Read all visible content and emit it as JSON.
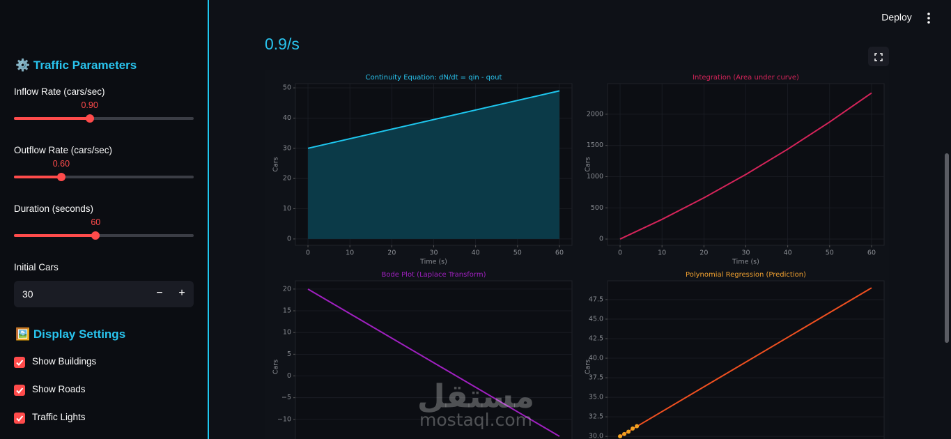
{
  "header": {
    "deploy": "Deploy"
  },
  "sidebar": {
    "parameters_title": "⚙️ Traffic Parameters",
    "sliders": [
      {
        "label": "Inflow Rate (cars/sec)",
        "value": 0.9,
        "value_label": "0.90",
        "min": 0.1,
        "max": 2.0
      },
      {
        "label": "Outflow Rate (cars/sec)",
        "value": 0.6,
        "value_label": "0.60",
        "min": 0.1,
        "max": 2.0
      },
      {
        "label": "Duration (seconds)",
        "value": 60,
        "min": 10,
        "max": 120
      }
    ],
    "initial_cars": {
      "label": "Initial Cars",
      "value": 30,
      "minus": "−",
      "plus": "+"
    },
    "display_title": "🖼️ Display Settings",
    "checkboxes": [
      {
        "label": "Show Buildings",
        "checked": true
      },
      {
        "label": "Show Roads",
        "checked": true
      },
      {
        "label": "Traffic Lights",
        "checked": true
      }
    ]
  },
  "main": {
    "metric": "0.9/s",
    "watermark": {
      "arabic": "مستقل",
      "latin": "mostaql.com"
    }
  },
  "chart_data": [
    {
      "type": "area",
      "title": "Continuity Equation: dN/dt = qin - qout",
      "title_color": "#29c4ee",
      "x_label": "Time (s)",
      "y_label": "Cars",
      "x": [
        0,
        60
      ],
      "series": [
        {
          "color": "#1ec8f0",
          "fill": "#0b3a48",
          "values": [
            30,
            49
          ]
        }
      ],
      "xlim": [
        -3,
        63
      ],
      "xticks": [
        0,
        10,
        20,
        30,
        40,
        50,
        60
      ],
      "ylim": [
        -2.1,
        51.4
      ],
      "yticks": [
        0,
        10,
        20,
        30,
        40,
        50
      ],
      "grid": true
    },
    {
      "type": "line",
      "title": "Integration (Area under curve)",
      "title_color": "#d6245a",
      "x_label": "Time (s)",
      "y_label": "Cars",
      "x": [
        0,
        10,
        20,
        30,
        40,
        50,
        60
      ],
      "series": [
        {
          "color": "#d6245a",
          "values": [
            0,
            315,
            660,
            1035,
            1440,
            1875,
            2340
          ]
        }
      ],
      "xlim": [
        -3,
        63
      ],
      "xticks": [
        0,
        10,
        20,
        30,
        40,
        50,
        60
      ],
      "ylim": [
        -100,
        2490
      ],
      "yticks": [
        0,
        500,
        1000,
        1500,
        2000
      ],
      "grid": true
    },
    {
      "type": "line",
      "title": "Bode Plot (Laplace Transform)",
      "title_color": "#a020c0",
      "y_label": "Cars",
      "x": [
        0,
        60
      ],
      "series": [
        {
          "color": "#a020c0",
          "values": [
            20,
            -13.9
          ]
        }
      ],
      "xlim": [
        -3,
        63
      ],
      "ylim": [
        -16.6,
        21.9
      ],
      "yticks": [
        20,
        15,
        10,
        5,
        0,
        {
          "value": -5,
          "label": "−5"
        },
        {
          "value": -10,
          "label": "−10"
        }
      ],
      "grid": true
    },
    {
      "type": "line",
      "title": "Polynomial Regression (Prediction)",
      "title_color": "#f0a030",
      "y_label": "Cars",
      "x": [
        0,
        60
      ],
      "series": [
        {
          "color": "#f05020",
          "values": [
            30,
            49
          ]
        },
        {
          "color": "#f0a020",
          "mode": "scatter",
          "x": [
            0,
            1,
            2,
            3,
            4
          ],
          "values": [
            30.0,
            30.3,
            30.6,
            31.0,
            31.3
          ]
        }
      ],
      "xlim": [
        -3,
        63
      ],
      "ylim": [
        28.5,
        49.9
      ],
      "yticks": [
        {
          "value": 30,
          "label": "30.0"
        },
        32.5,
        {
          "value": 35,
          "label": "35.0"
        },
        37.5,
        {
          "value": 40,
          "label": "40.0"
        },
        42.5,
        {
          "value": 45,
          "label": "45.0"
        },
        47.5
      ],
      "grid": true
    }
  ]
}
